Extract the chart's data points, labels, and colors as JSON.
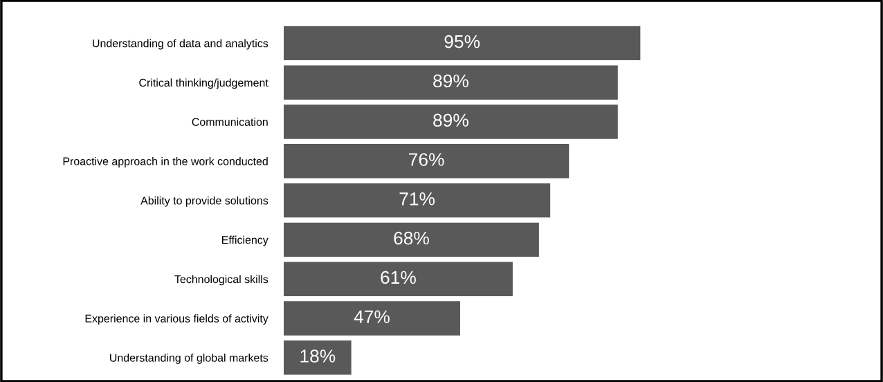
{
  "chart_data": {
    "type": "bar",
    "orientation": "horizontal",
    "categories": [
      "Understanding of data and analytics",
      "Critical thinking/judgement",
      "Communication",
      "Proactive approach in the work conducted",
      "Ability to provide solutions",
      "Efficiency",
      "Technological skills",
      "Experience in various fields of activity",
      "Understanding of global markets"
    ],
    "values": [
      95,
      89,
      89,
      76,
      71,
      68,
      61,
      47,
      18
    ],
    "value_labels": [
      "95%",
      "89%",
      "89%",
      "76%",
      "71%",
      "68%",
      "61%",
      "47%",
      "18%"
    ],
    "color": "#595959",
    "grid": false,
    "legend": false
  }
}
